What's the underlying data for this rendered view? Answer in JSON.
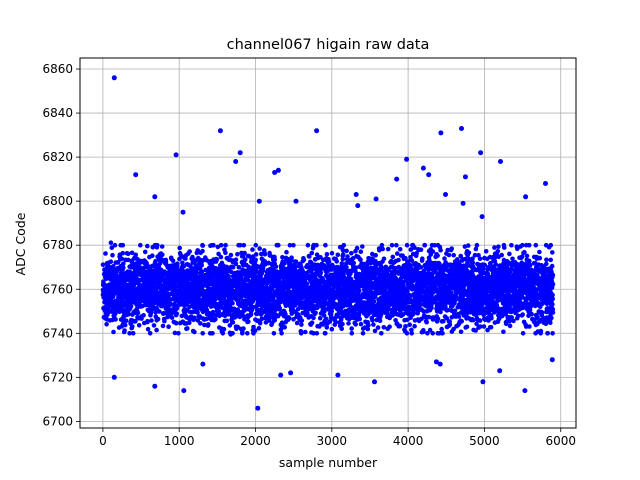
{
  "chart_data": {
    "type": "scatter",
    "title": "channel067 higain raw data",
    "xlabel": "sample number",
    "ylabel": "ADC Code",
    "xlim": [
      -300,
      6200
    ],
    "ylim": [
      6697,
      6865
    ],
    "xticks": [
      0,
      1000,
      2000,
      3000,
      4000,
      5000,
      6000
    ],
    "yticks": [
      6700,
      6720,
      6740,
      6760,
      6780,
      6800,
      6820,
      6840,
      6860
    ],
    "grid": true,
    "marker_color": "#0000ff",
    "series": [
      {
        "n_points": 5900,
        "core_range": [
          6742,
          6778
        ],
        "center": 6760,
        "outliers": [
          [
            150,
            6856
          ],
          [
            1540,
            6832
          ],
          [
            2800,
            6832
          ],
          [
            4700,
            6833
          ],
          [
            4430,
            6831
          ],
          [
            960,
            6821
          ],
          [
            1800,
            6822
          ],
          [
            4950,
            6822
          ],
          [
            1740,
            6818
          ],
          [
            3980,
            6819
          ],
          [
            5210,
            6818
          ],
          [
            4200,
            6815
          ],
          [
            2300,
            6814
          ],
          [
            2250,
            6813
          ],
          [
            4270,
            6812
          ],
          [
            4750,
            6811
          ],
          [
            3850,
            6810
          ],
          [
            430,
            6812
          ],
          [
            5800,
            6808
          ],
          [
            680,
            6802
          ],
          [
            3320,
            6803
          ],
          [
            4490,
            6803
          ],
          [
            3580,
            6801
          ],
          [
            5540,
            6802
          ],
          [
            2530,
            6800
          ],
          [
            2050,
            6800
          ],
          [
            4720,
            6799
          ],
          [
            4970,
            6793
          ],
          [
            3340,
            6798
          ],
          [
            1050,
            6795
          ],
          [
            2030,
            6706
          ],
          [
            1060,
            6714
          ],
          [
            5530,
            6714
          ],
          [
            4980,
            6718
          ],
          [
            3560,
            6718
          ],
          [
            150,
            6720
          ],
          [
            2330,
            6721
          ],
          [
            2460,
            6722
          ],
          [
            3080,
            6721
          ],
          [
            680,
            6716
          ],
          [
            5200,
            6723
          ],
          [
            1310,
            6726
          ],
          [
            4370,
            6727
          ],
          [
            4420,
            6726
          ],
          [
            5890,
            6728
          ]
        ]
      }
    ]
  }
}
